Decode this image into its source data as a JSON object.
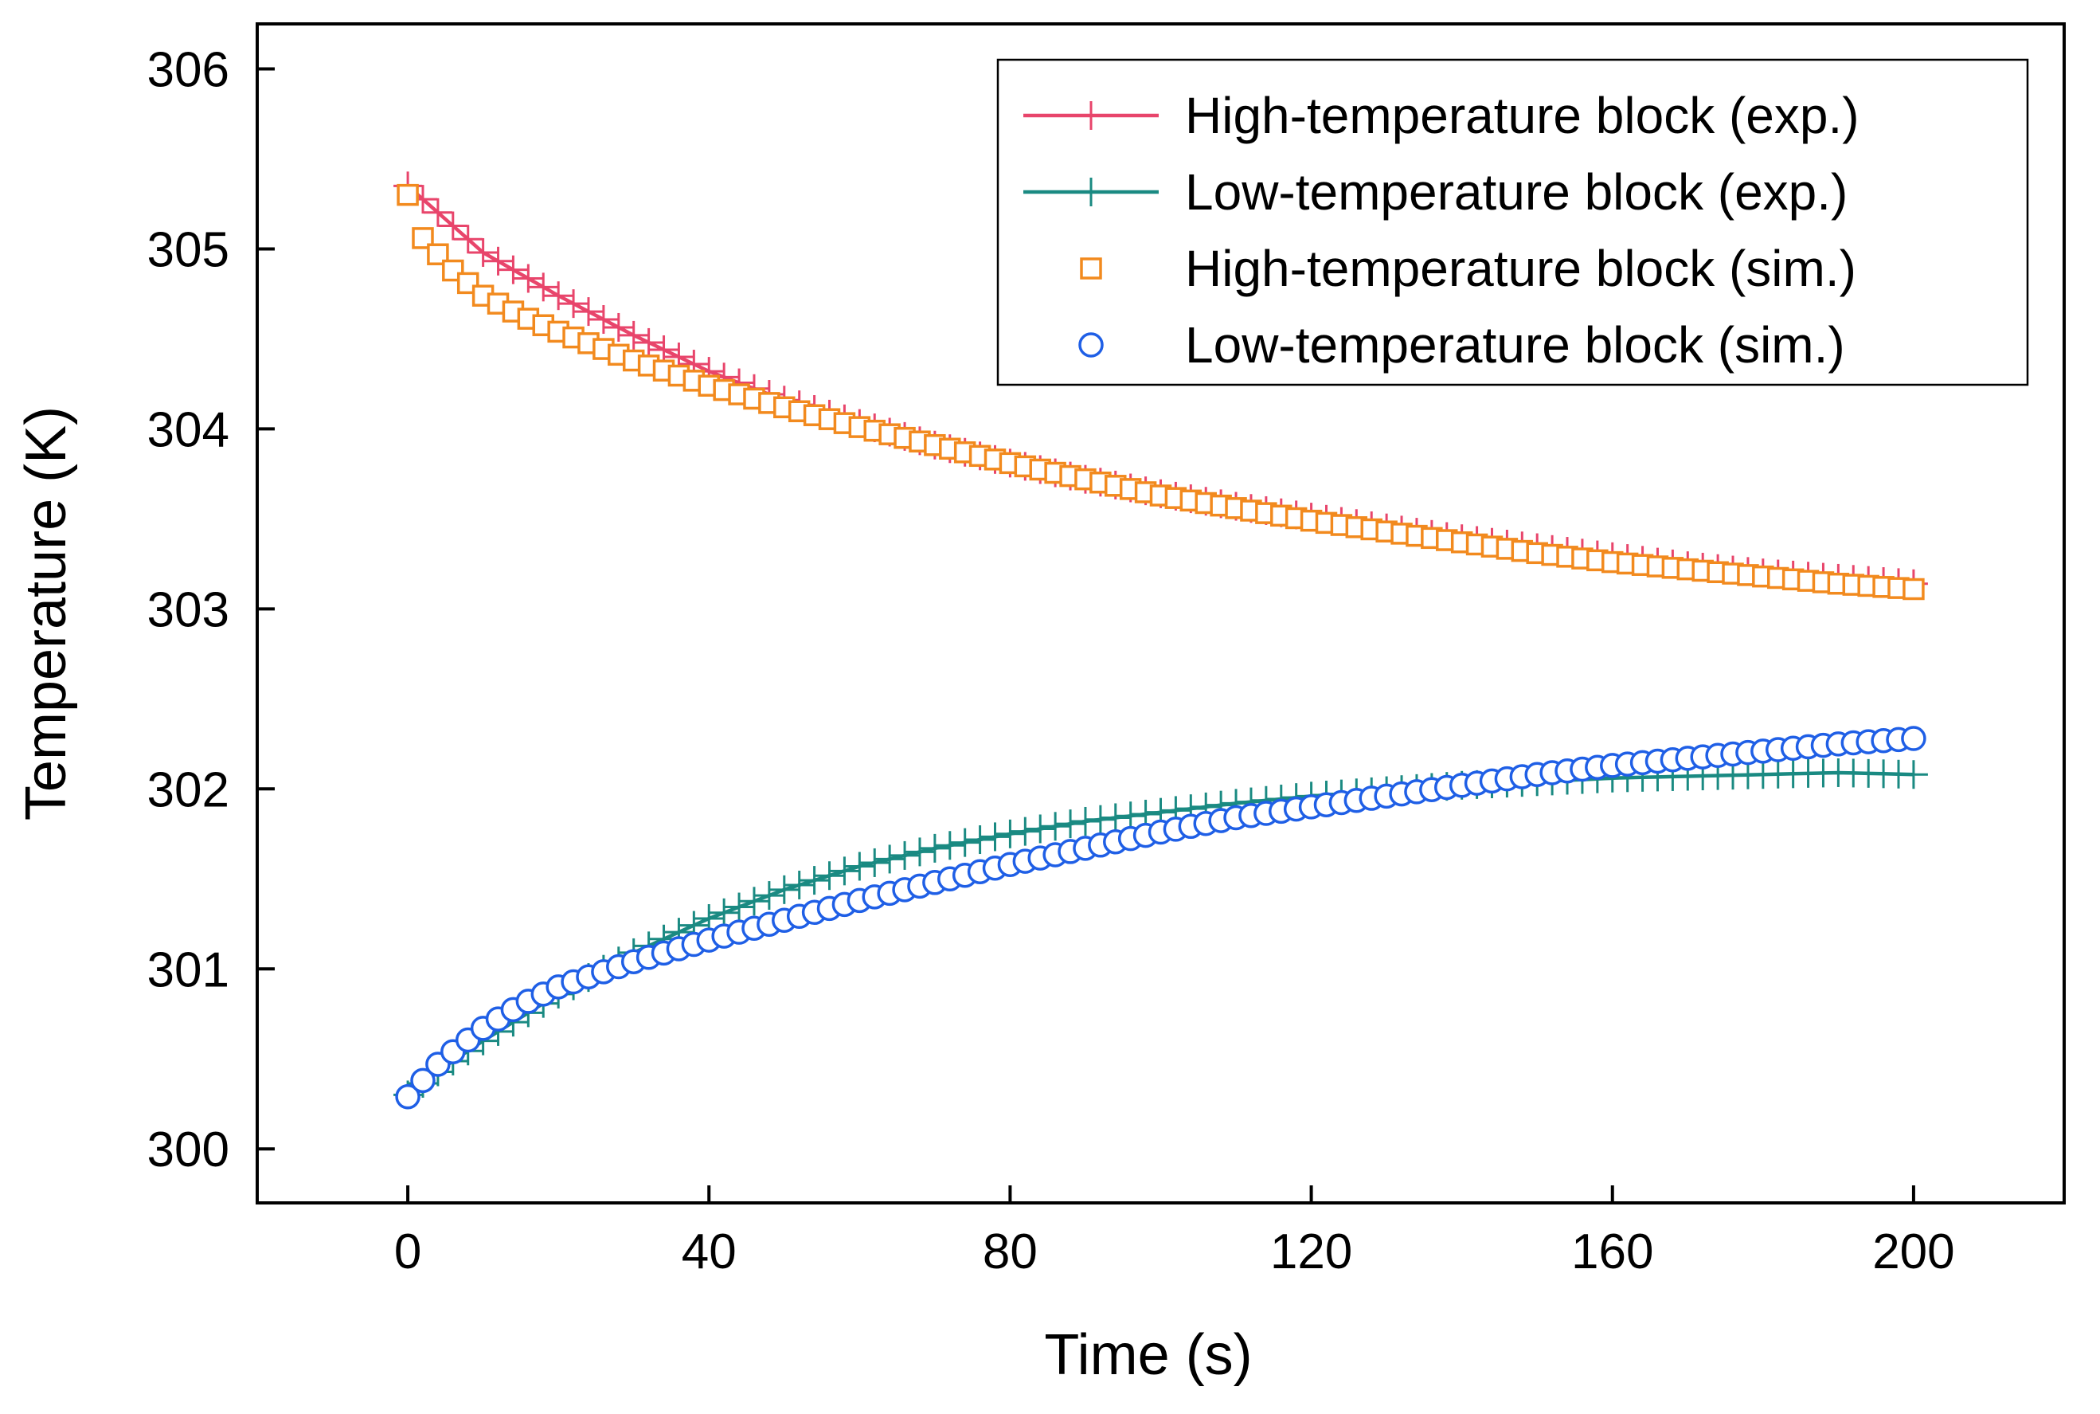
{
  "chart_data": {
    "type": "line",
    "title": "",
    "xlabel": "Time (s)",
    "ylabel": "Temperature (K)",
    "xlim": [
      -20,
      220
    ],
    "ylim": [
      299.7,
      306.25
    ],
    "xticks": [
      0,
      40,
      80,
      120,
      160,
      200
    ],
    "yticks": [
      300,
      301,
      302,
      303,
      304,
      305,
      306
    ],
    "grid": false,
    "legend_position": "top-right",
    "series": [
      {
        "name": "High-temperature block (exp.)",
        "style": "line-plus",
        "color": "#e8456b",
        "x": [
          0,
          10,
          20,
          30,
          40,
          50,
          60,
          70,
          80,
          90,
          100,
          110,
          120,
          130,
          140,
          150,
          160,
          170,
          180,
          190,
          200
        ],
        "y": [
          305.35,
          304.98,
          304.74,
          304.52,
          304.32,
          304.16,
          304.03,
          303.91,
          303.81,
          303.72,
          303.64,
          303.57,
          303.51,
          303.45,
          303.39,
          303.34,
          303.29,
          303.24,
          303.2,
          303.17,
          303.14
        ]
      },
      {
        "name": "Low-temperature block (exp.)",
        "style": "line-plus",
        "color": "#1a8a82",
        "x": [
          0,
          5,
          10,
          15,
          20,
          30,
          40,
          50,
          60,
          70,
          80,
          90,
          100,
          110,
          120,
          130,
          140,
          150,
          160,
          170,
          180,
          190,
          200
        ],
        "y": [
          300.3,
          300.46,
          300.6,
          300.73,
          300.86,
          301.09,
          301.28,
          301.44,
          301.57,
          301.67,
          301.75,
          301.82,
          301.87,
          301.92,
          301.96,
          301.99,
          302.02,
          302.04,
          302.06,
          302.07,
          302.08,
          302.09,
          302.08
        ]
      },
      {
        "name": "High-temperature block (sim.)",
        "style": "marker-square",
        "color": "#f28a1e",
        "x": [
          0,
          2,
          4,
          6,
          10,
          15,
          20,
          30,
          40,
          50,
          60,
          70,
          80,
          90,
          100,
          110,
          120,
          130,
          140,
          150,
          160,
          170,
          180,
          190,
          200
        ],
        "y": [
          305.3,
          305.06,
          304.97,
          304.88,
          304.74,
          304.63,
          304.54,
          304.38,
          304.24,
          304.12,
          304.01,
          303.91,
          303.81,
          303.72,
          303.63,
          303.56,
          303.49,
          303.43,
          303.37,
          303.31,
          303.26,
          303.22,
          303.18,
          303.14,
          303.11
        ]
      },
      {
        "name": "Low-temperature block (sim.)",
        "style": "marker-circle",
        "color": "#1f5fe6",
        "x": [
          0,
          2,
          4,
          6,
          10,
          15,
          20,
          30,
          40,
          50,
          60,
          70,
          80,
          90,
          100,
          110,
          120,
          130,
          140,
          150,
          160,
          170,
          180,
          190,
          200
        ],
        "y": [
          300.29,
          300.38,
          300.47,
          300.54,
          300.67,
          300.8,
          300.9,
          301.04,
          301.16,
          301.27,
          301.38,
          301.48,
          301.58,
          301.67,
          301.76,
          301.84,
          301.9,
          301.96,
          302.02,
          302.08,
          302.13,
          302.17,
          302.21,
          302.25,
          302.28
        ]
      }
    ]
  }
}
